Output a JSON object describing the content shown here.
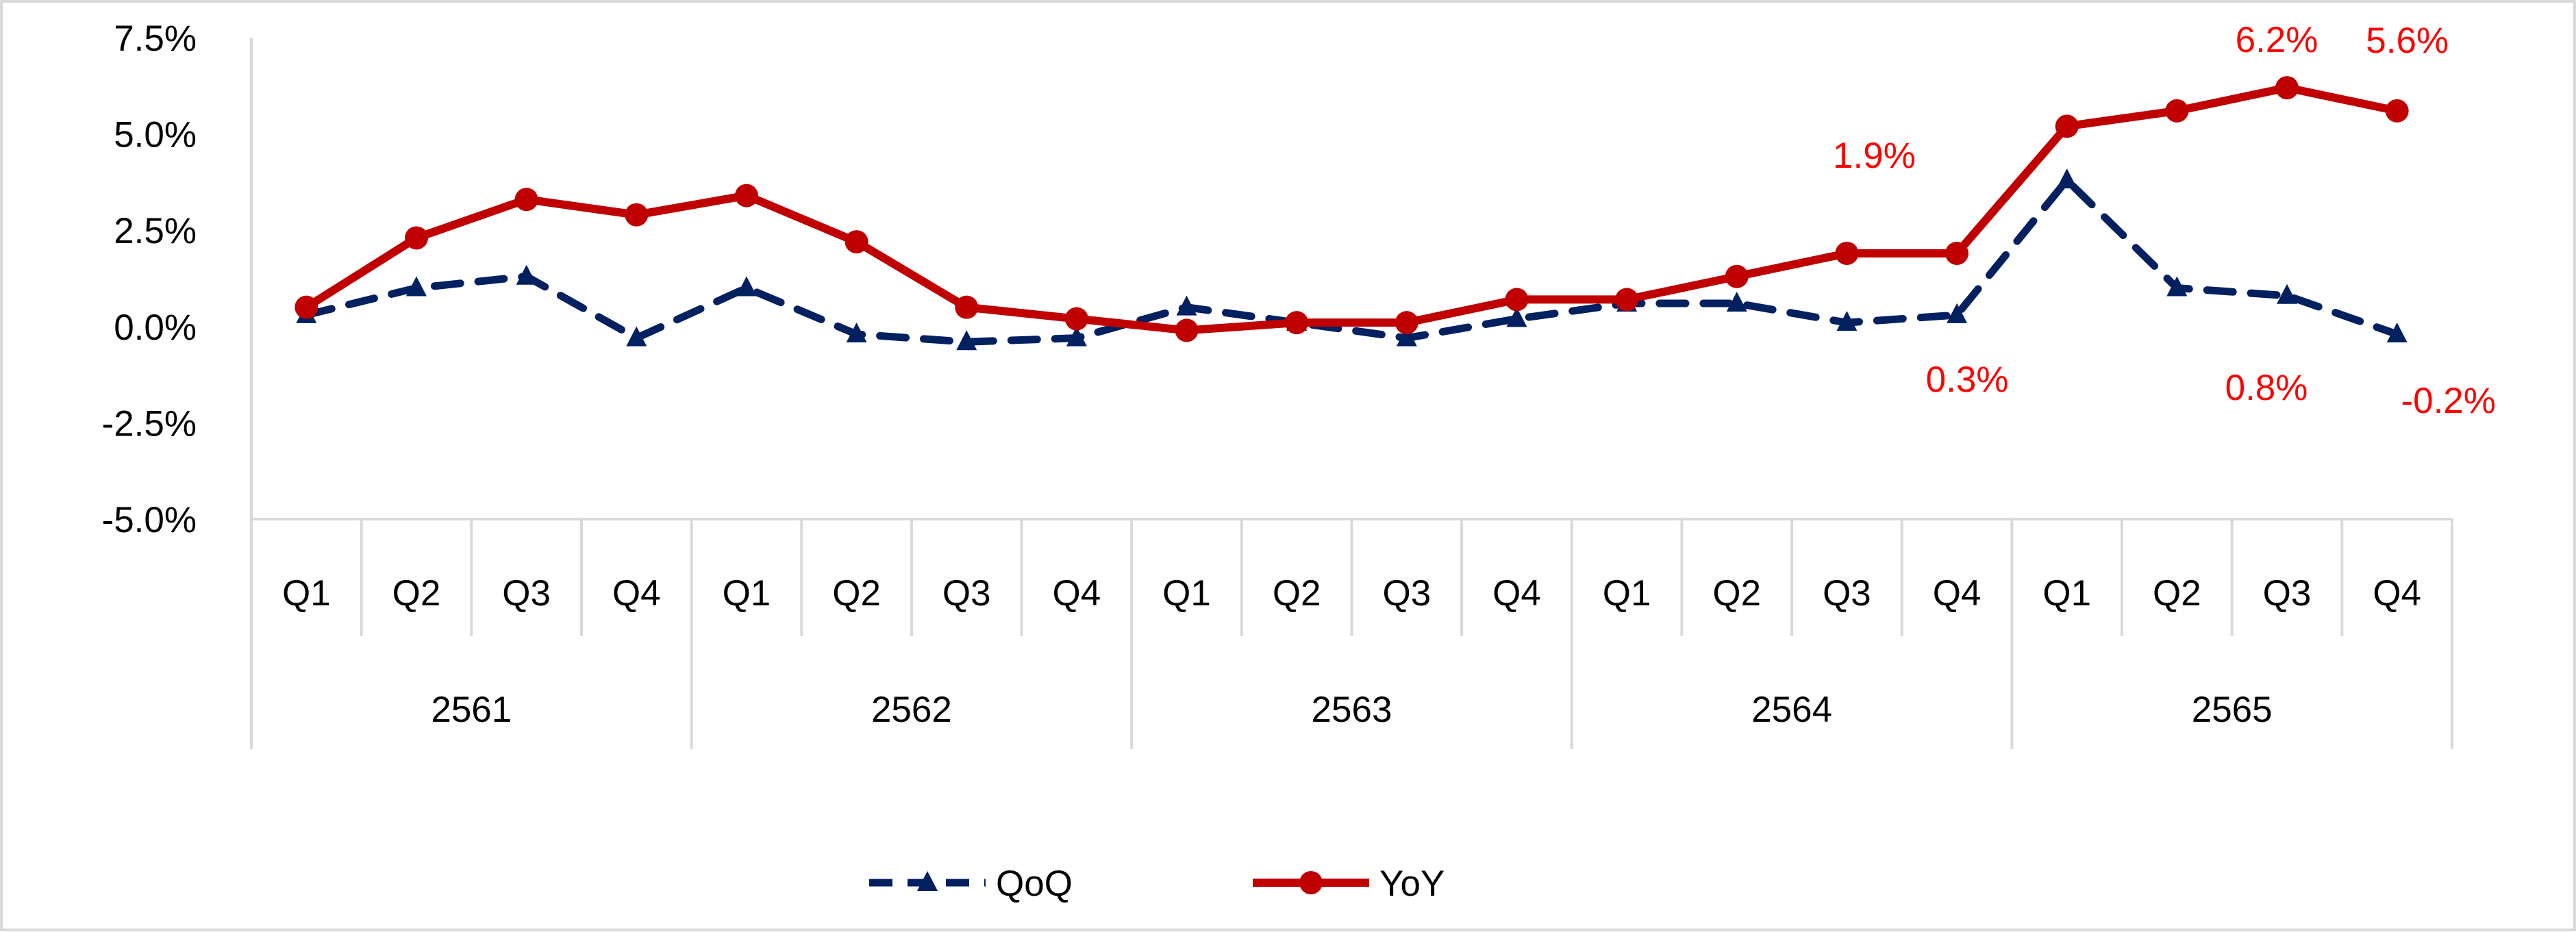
{
  "chart_data": {
    "type": "line",
    "title": "",
    "xlabel": "",
    "ylabel": "",
    "ylim": [
      -5.0,
      7.5
    ],
    "y_ticks": [
      -5.0,
      -2.5,
      0.0,
      2.5,
      5.0,
      7.5
    ],
    "y_tick_labels": [
      "-5.0%",
      "-2.5%",
      "0.0%",
      "2.5%",
      "5.0%",
      "7.5%"
    ],
    "grid": false,
    "legend_position": "bottom",
    "categories": [
      "Q1",
      "Q2",
      "Q3",
      "Q4",
      "Q1",
      "Q2",
      "Q3",
      "Q4",
      "Q1",
      "Q2",
      "Q3",
      "Q4",
      "Q1",
      "Q2",
      "Q3",
      "Q4",
      "Q1",
      "Q2",
      "Q3",
      "Q4"
    ],
    "groups": [
      {
        "label": "2561",
        "count": 4
      },
      {
        "label": "2562",
        "count": 4
      },
      {
        "label": "2563",
        "count": 4
      },
      {
        "label": "2564",
        "count": 4
      },
      {
        "label": "2565",
        "count": 4
      }
    ],
    "series": [
      {
        "name": "QoQ",
        "color": "#002060",
        "line_style": "dashed",
        "marker": "triangle",
        "values": [
          0.3,
          1.0,
          1.3,
          -0.3,
          1.0,
          -0.2,
          -0.4,
          -0.3,
          0.5,
          0.1,
          -0.3,
          0.2,
          0.6,
          0.6,
          0.1,
          0.3,
          3.8,
          1.0,
          0.8,
          -0.2
        ]
      },
      {
        "name": "YoY",
        "color": "#c00000",
        "line_style": "solid",
        "marker": "circle",
        "values": [
          0.5,
          2.3,
          3.3,
          2.9,
          3.4,
          2.2,
          0.5,
          0.2,
          -0.1,
          0.1,
          0.1,
          0.7,
          0.7,
          1.3,
          1.9,
          1.9,
          5.2,
          5.6,
          6.2,
          5.6
        ]
      }
    ],
    "data_labels": [
      {
        "text": "1.9%",
        "series": "YoY",
        "index": 14,
        "color": "#ff0000",
        "position": "above"
      },
      {
        "text": "6.2%",
        "series": "YoY",
        "index": 18,
        "color": "#ff0000",
        "position": "above"
      },
      {
        "text": "5.6%",
        "series": "YoY",
        "index": 19,
        "color": "#ff0000",
        "position": "above"
      },
      {
        "text": "0.3%",
        "series": "QoQ",
        "index": 15,
        "color": "#ff0000",
        "position": "below"
      },
      {
        "text": "0.8%",
        "series": "QoQ",
        "index": 18,
        "color": "#ff0000",
        "position": "below"
      },
      {
        "text": "-0.2%",
        "series": "QoQ",
        "index": 19,
        "color": "#ff0000",
        "position": "below"
      }
    ]
  }
}
